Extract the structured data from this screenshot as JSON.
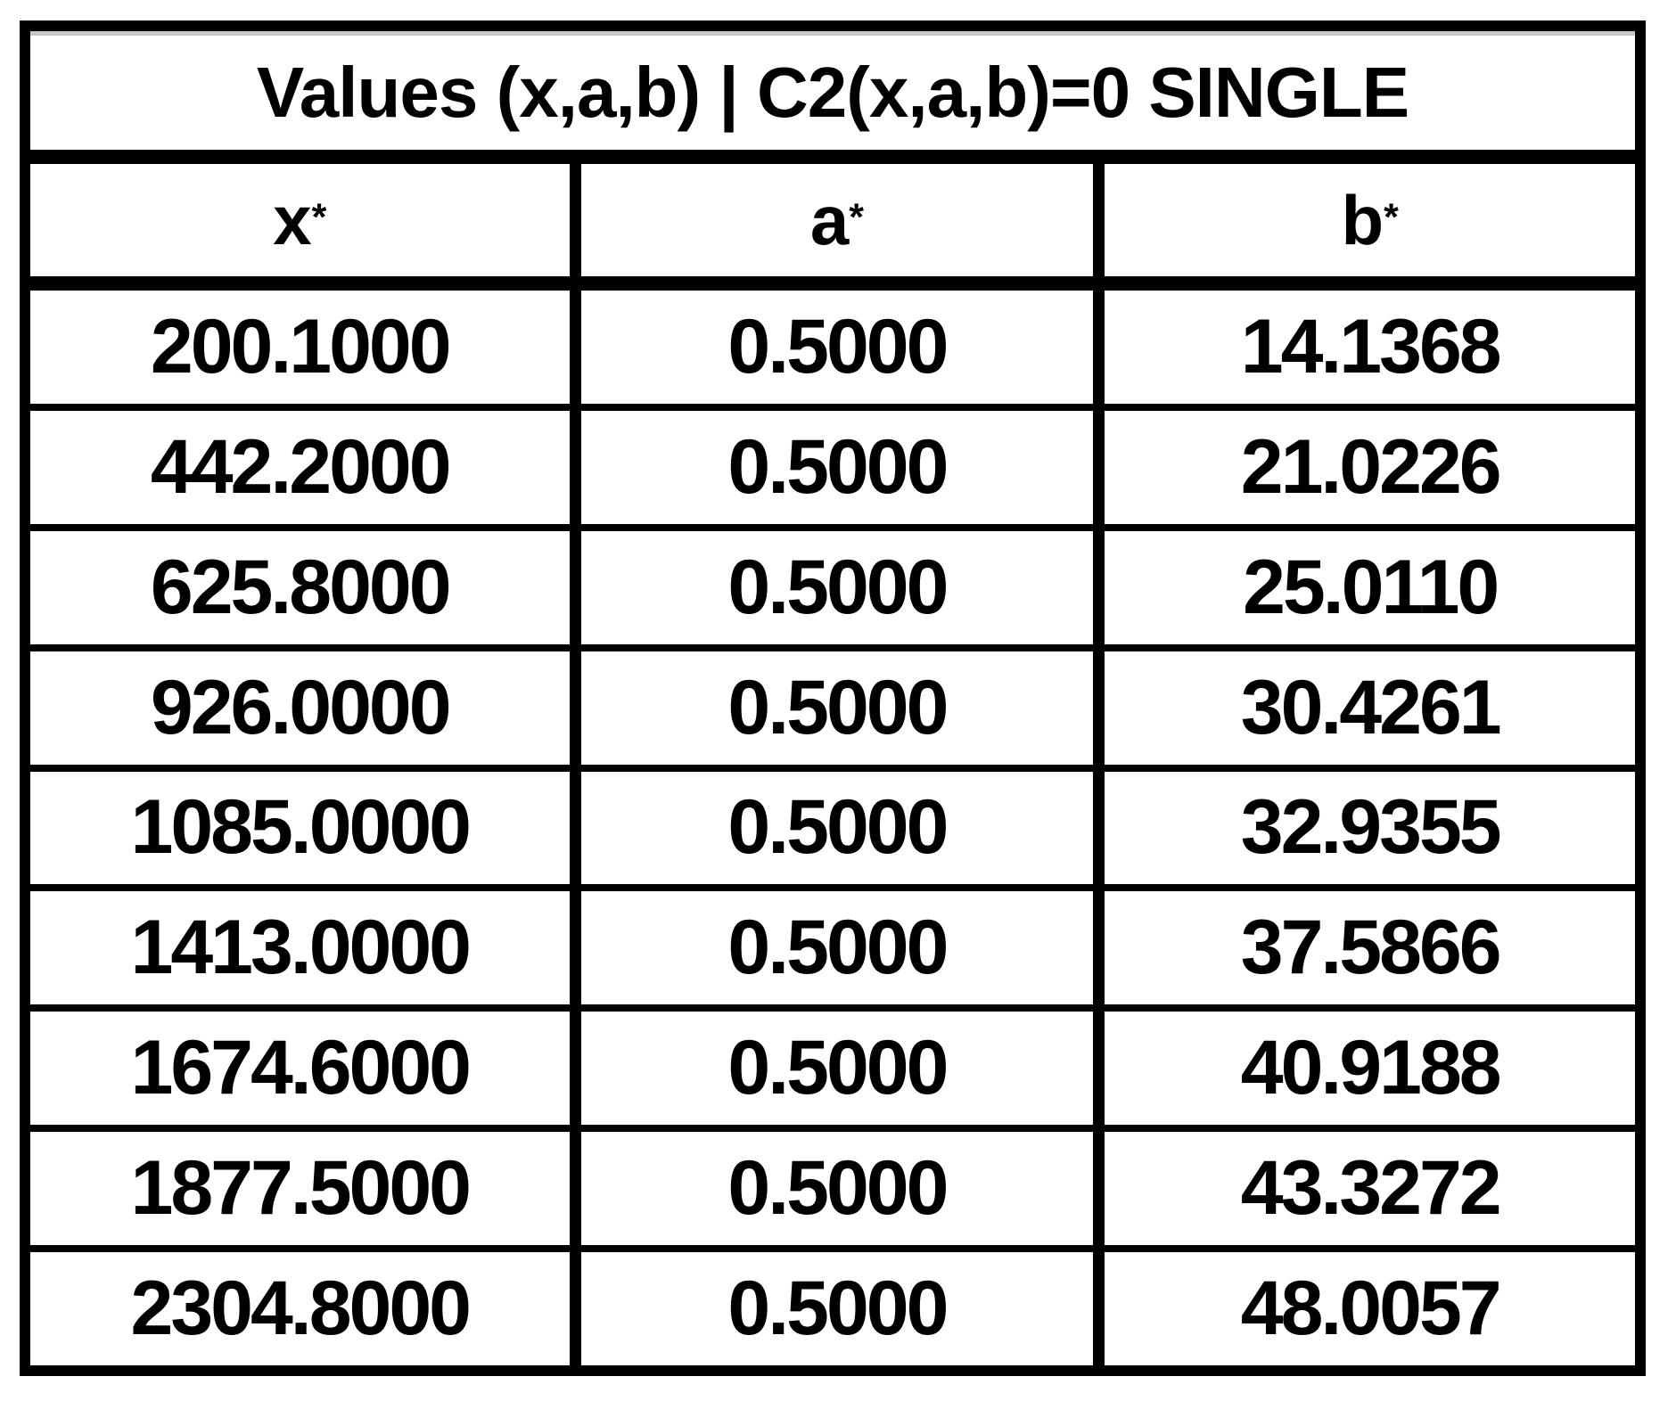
{
  "chart_data": {
    "type": "table",
    "title": "Values (x,a,b) | C2(x,a,b)=0 SINGLE",
    "columns": [
      "x*",
      "a*",
      "b*"
    ],
    "column_parts": [
      {
        "base": "x",
        "sup": "*"
      },
      {
        "base": "a",
        "sup": "*"
      },
      {
        "base": "b",
        "sup": "*"
      }
    ],
    "rows": [
      [
        "200.1000",
        "0.5000",
        "14.1368"
      ],
      [
        "442.2000",
        "0.5000",
        "21.0226"
      ],
      [
        "625.8000",
        "0.5000",
        "25.0110"
      ],
      [
        "926.0000",
        "0.5000",
        "30.4261"
      ],
      [
        "1085.0000",
        "0.5000",
        "32.9355"
      ],
      [
        "1413.0000",
        "0.5000",
        "37.5866"
      ],
      [
        "1674.6000",
        "0.5000",
        "40.9188"
      ],
      [
        "1877.5000",
        "0.5000",
        "43.3272"
      ],
      [
        "2304.8000",
        "0.5000",
        "48.0057"
      ]
    ],
    "x_values_numeric": [
      200.1,
      442.2,
      625.8,
      926.0,
      1085.0,
      1413.0,
      1674.6,
      1877.5,
      2304.8
    ],
    "a_values_numeric": [
      0.5,
      0.5,
      0.5,
      0.5,
      0.5,
      0.5,
      0.5,
      0.5,
      0.5
    ],
    "b_values_numeric": [
      14.1368,
      21.0226,
      25.011,
      30.4261,
      32.9355,
      37.5866,
      40.9188,
      43.3272,
      48.0057
    ],
    "layout_hints": {
      "grid": "thick black outer border, thick separators under title and header, thin separators between data rows",
      "legend_position": "none"
    }
  },
  "colors": {
    "border": "#000000",
    "text": "#000000",
    "background": "#ffffff",
    "top_strip": "#c9c9c9"
  }
}
